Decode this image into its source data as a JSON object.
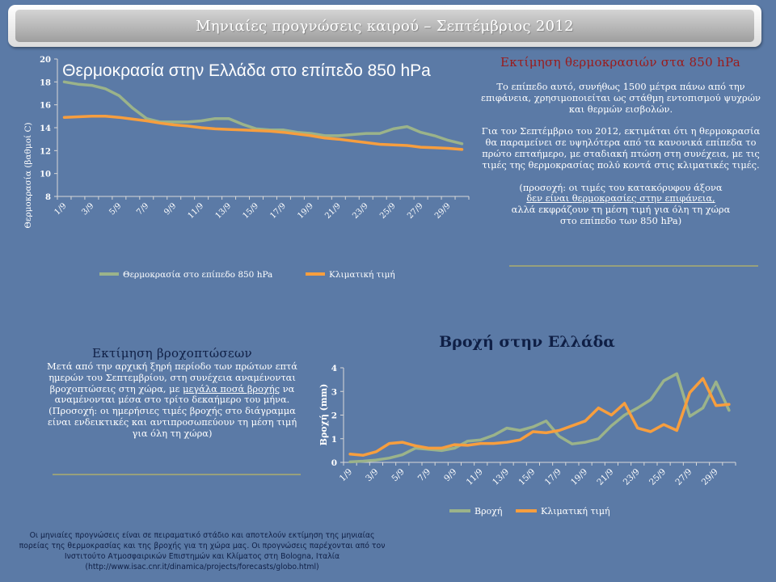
{
  "header": {
    "title": "Μηνιαίες προγνώσεις καιρού – Σεπτέμβριος 2012"
  },
  "temp_text": {
    "heading": "Εκτίμηση θερμοκρασιών στα 850 hPa",
    "p1": "Το επίπεδο αυτό, συνήθως 1500 μέτρα πάνω από την επιφάνεια, χρησιμοποιείται ως στάθμη εντοπισμού ψυχρών και θερμών εισβολών.",
    "p2": "Για τον Σεπτέμβριο του 2012, εκτιμάται ότι η θερμοκρασία θα παραμείνει σε υψηλότερα από τα κανονικά επίπεδα το πρώτο επταήμερο, με σταδιακή πτώση στη συνέχεια, με τις τιμές της θερμοκρασίας πολύ κοντά στις κλιματικές τιμές.",
    "note_a": "(προσοχή: οι τιμές του κατακόρυφου άξονα",
    "note_b": "δεν είναι θερμοκρασίες στην επιφάνεια,",
    "note_c": "αλλά εκφράζουν τη μέση τιμή για όλη τη χώρα",
    "note_d": "στο επίπεδο των 850 hPa)"
  },
  "rain_text": {
    "heading": "Εκτίμηση βροχοπτώσεων",
    "p_a": "Μετά από την αρχική ξηρή περίοδο των πρώτων επτά ημερών του Σεπτεμβρίου, στη συνέχεια αναμένονται βροχοπτώσεις στη χώρα, με ",
    "p_b": "μεγάλα ποσά βροχής",
    "p_c": " να αναμένονται μέσα στο τρίτο δεκαήμερο του μήνα.",
    "p2": "(Προσοχή: οι ημερήσιες τιμές βροχής στο διάγραμμα είναι ενδεικτικές και αντιπροσωπεύουν τη μέση τιμή για όλη τη χώρα)"
  },
  "footer": {
    "text": "Οι μηνιαίες προγνώσεις είναι σε πειραματικό στάδιο και αποτελούν εκτίμηση της μηνιαίας πορείας της θερμοκρασίας και της βροχής για τη χώρα μας. Οι προγνώσεις παρέχονται από τον Ινστιτούτο Ατμοσφαιρικών Επιστημών και Κλίματος στη Bologna, Ιταλία (http://www.isac.cnr.it/dinamica/projects/forecasts/globo.html)"
  },
  "colors": {
    "forecast": "#9bb38a",
    "climate": "#f79e3e",
    "axis": "#d8d8d8",
    "label": "#ffffff"
  },
  "chart_data": [
    {
      "type": "line",
      "title": "Θερμοκρασία στην Ελλάδα στο επίπεδο 850 hPa",
      "ylabel": "Θερμοκρασία (βαθμοί C)",
      "ylim": [
        8,
        20
      ],
      "yticks": [
        "8",
        "10",
        "12",
        "14",
        "16",
        "18",
        "20"
      ],
      "categories": [
        "1/9",
        "2/9",
        "3/9",
        "4/9",
        "5/9",
        "6/9",
        "7/9",
        "8/9",
        "9/9",
        "10/9",
        "11/9",
        "12/9",
        "13/9",
        "14/9",
        "15/9",
        "16/9",
        "17/9",
        "18/9",
        "19/9",
        "20/9",
        "21/9",
        "22/9",
        "23/9",
        "24/9",
        "25/9",
        "26/9",
        "27/9",
        "28/9",
        "29/9",
        "30/9"
      ],
      "xtick_labels": [
        "1/9",
        "",
        "3/9",
        "",
        "5/9",
        "",
        "7/9",
        "",
        "9/9",
        "",
        "11/9",
        "",
        "13/9",
        "",
        "15/9",
        "",
        "17/9",
        "",
        "19/9",
        "",
        "21/9",
        "",
        "23/9",
        "",
        "25/9",
        "",
        "27/9",
        "",
        "29/9",
        ""
      ],
      "legend_position": "bottom",
      "series": [
        {
          "name": "Θερμοκρασία στο επίπεδο 850 hPa",
          "values": [
            18.0,
            17.8,
            17.7,
            17.4,
            16.8,
            15.7,
            14.8,
            14.5,
            14.5,
            14.5,
            14.6,
            14.8,
            14.8,
            14.3,
            13.9,
            13.8,
            13.8,
            13.6,
            13.5,
            13.3,
            13.3,
            13.4,
            13.5,
            13.5,
            13.9,
            14.1,
            13.6,
            13.3,
            12.9,
            12.6
          ]
        },
        {
          "name": "Κλιματική τιμή",
          "values": [
            14.9,
            14.95,
            15.0,
            15.0,
            14.9,
            14.75,
            14.6,
            14.4,
            14.25,
            14.15,
            14.0,
            13.9,
            13.85,
            13.8,
            13.75,
            13.7,
            13.6,
            13.45,
            13.3,
            13.1,
            13.0,
            12.85,
            12.7,
            12.55,
            12.5,
            12.45,
            12.3,
            12.25,
            12.2,
            12.1
          ]
        }
      ]
    },
    {
      "type": "line",
      "title": "Βροχή στην Ελλάδα",
      "ylabel": "Βροχή (mm)",
      "ylim": [
        0,
        4
      ],
      "yticks": [
        "0",
        "1",
        "2",
        "3",
        "4"
      ],
      "categories": [
        "1/9",
        "2/9",
        "3/9",
        "4/9",
        "5/9",
        "6/9",
        "7/9",
        "8/9",
        "9/9",
        "10/9",
        "11/9",
        "12/9",
        "13/9",
        "14/9",
        "15/9",
        "16/9",
        "17/9",
        "18/9",
        "19/9",
        "20/9",
        "21/9",
        "22/9",
        "23/9",
        "24/9",
        "25/9",
        "26/9",
        "27/9",
        "28/9",
        "29/9",
        "30/9"
      ],
      "xtick_labels": [
        "1/9",
        "",
        "3/9",
        "",
        "5/9",
        "",
        "7/9",
        "",
        "9/9",
        "",
        "11/9",
        "",
        "13/9",
        "",
        "15/9",
        "",
        "17/9",
        "",
        "19/9",
        "",
        "21/9",
        "",
        "23/9",
        "",
        "25/9",
        "",
        "27/9",
        "",
        "29/9",
        ""
      ],
      "legend_position": "bottom",
      "series": [
        {
          "name": "Βροχή",
          "values": [
            0.02,
            0.05,
            0.1,
            0.18,
            0.32,
            0.6,
            0.55,
            0.5,
            0.6,
            0.9,
            0.95,
            1.15,
            1.45,
            1.35,
            1.5,
            1.75,
            1.1,
            0.78,
            0.85,
            1.0,
            1.55,
            2.0,
            2.3,
            2.65,
            3.45,
            3.75,
            1.95,
            2.3,
            3.4,
            2.2
          ]
        },
        {
          "name": "Κλιματική τιμή",
          "values": [
            0.35,
            0.3,
            0.45,
            0.8,
            0.85,
            0.7,
            0.6,
            0.6,
            0.75,
            0.72,
            0.8,
            0.8,
            0.85,
            0.95,
            1.3,
            1.25,
            1.35,
            1.55,
            1.75,
            2.3,
            2.0,
            2.5,
            1.45,
            1.3,
            1.6,
            1.35,
            2.95,
            3.55,
            2.4,
            2.45
          ]
        }
      ]
    }
  ]
}
